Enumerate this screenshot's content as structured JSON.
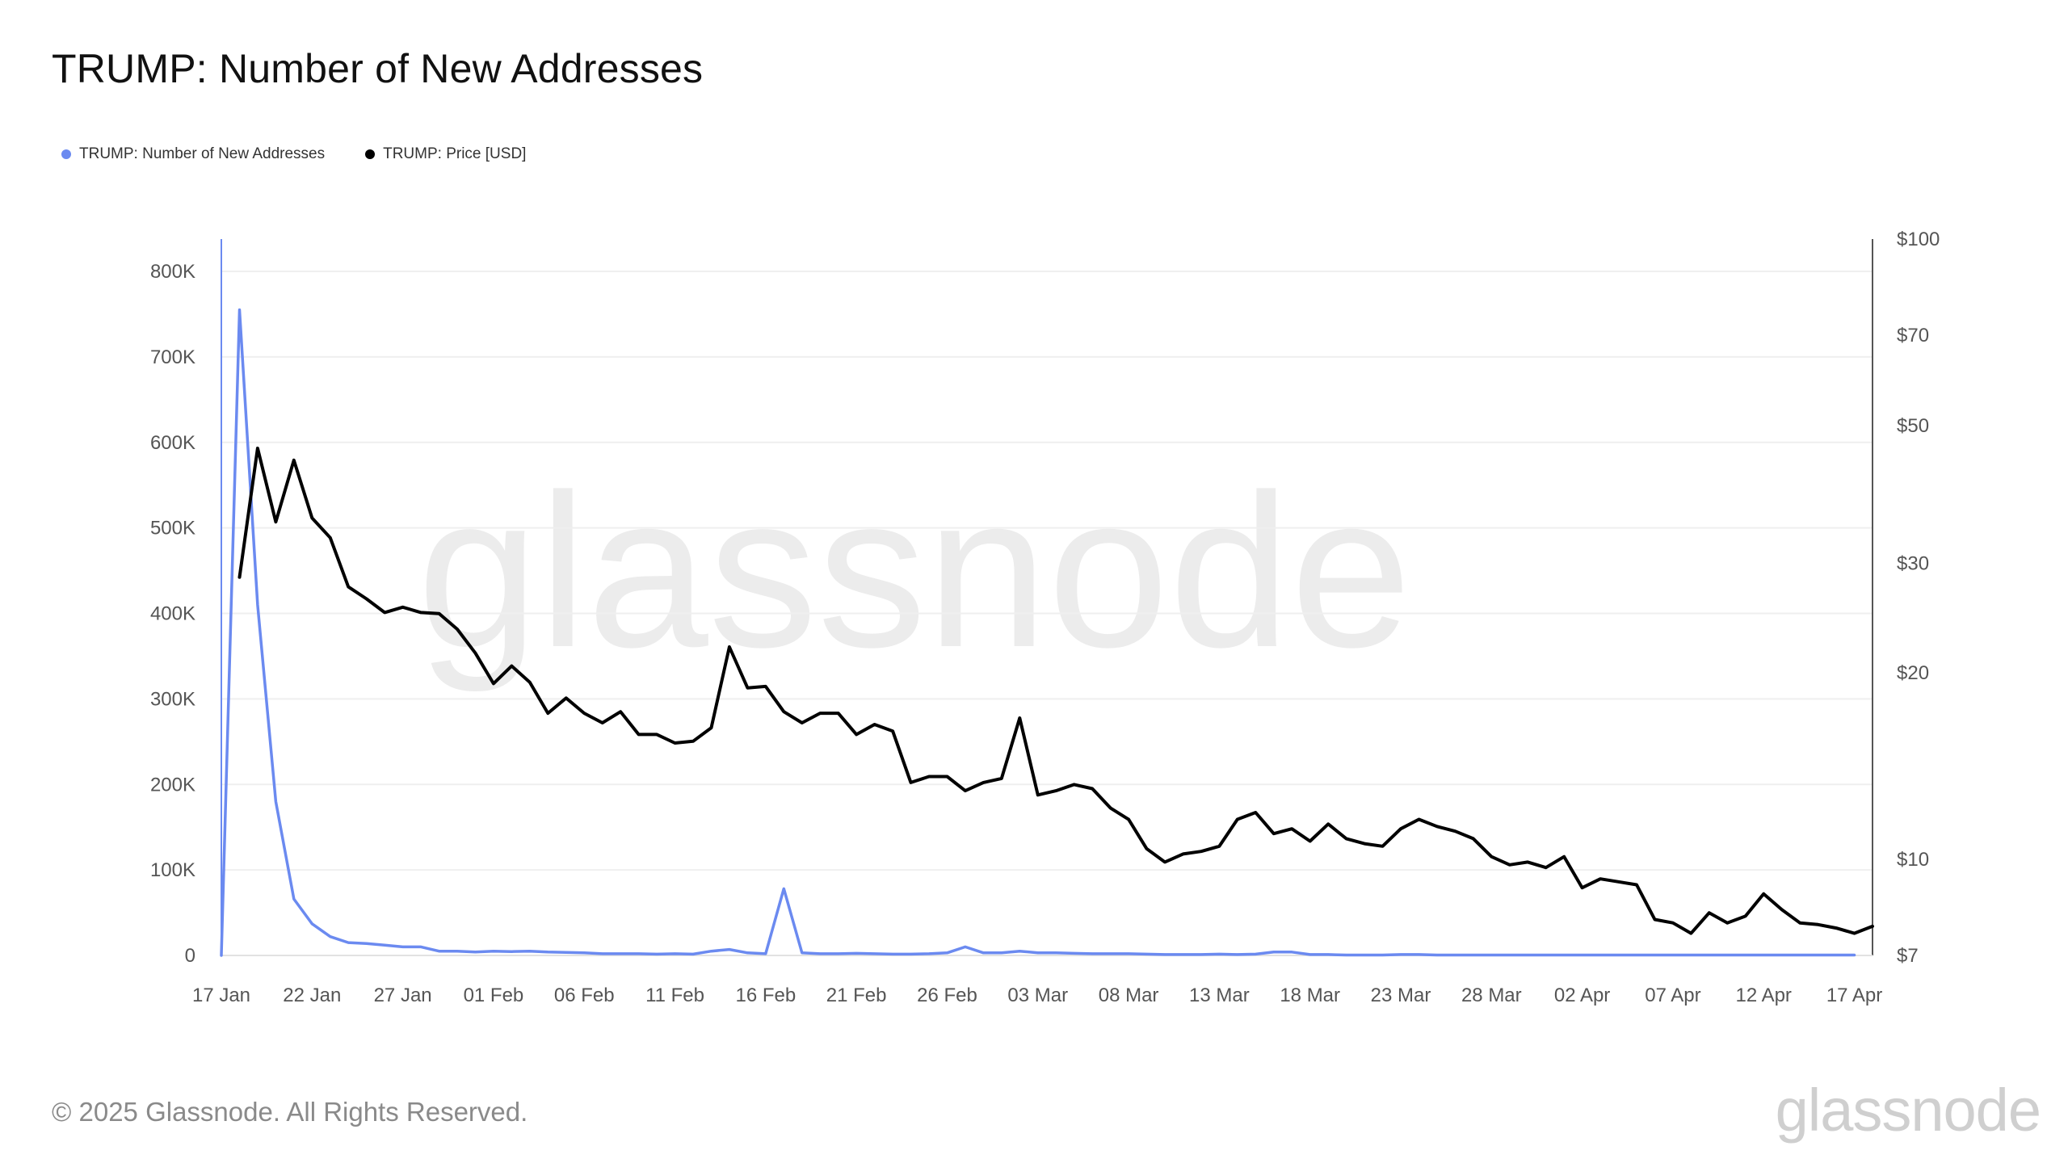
{
  "title": "TRUMP: Number of New Addresses",
  "legend": [
    {
      "label": "TRUMP: Number of New Addresses",
      "color": "#6b8af0"
    },
    {
      "label": "TRUMP: Price [USD]",
      "color": "#000000"
    }
  ],
  "footer": "© 2025 Glassnode. All Rights Reserved.",
  "brand": "glassnode",
  "watermark": "glassnode",
  "chart_data": {
    "type": "line",
    "title": "TRUMP: Number of New Addresses",
    "x_start": "2025-01-17",
    "x_end": "2025-04-18",
    "x_ticks": [
      "17 Jan",
      "22 Jan",
      "27 Jan",
      "01 Feb",
      "06 Feb",
      "11 Feb",
      "16 Feb",
      "21 Feb",
      "26 Feb",
      "03 Mar",
      "08 Mar",
      "13 Mar",
      "18 Mar",
      "23 Mar",
      "28 Mar",
      "02 Apr",
      "07 Apr",
      "12 Apr",
      "17 Apr"
    ],
    "y_left": {
      "label": "",
      "ticks": [
        "0",
        "100K",
        "200K",
        "300K",
        "400K",
        "500K",
        "600K",
        "700K",
        "800K"
      ],
      "range": [
        0,
        800000
      ]
    },
    "y_right": {
      "label": "",
      "scale": "log",
      "ticks": [
        "$7",
        "$10",
        "$20",
        "$30",
        "$50",
        "$70",
        "$100"
      ],
      "range": [
        7,
        100
      ]
    },
    "grid": true,
    "legend_position": "top-left",
    "series": [
      {
        "name": "TRUMP: Number of New Addresses",
        "axis": "left",
        "color": "#6b8af0",
        "start": "2025-01-17",
        "values": [
          0,
          755000,
          410000,
          180000,
          66000,
          37000,
          22000,
          15000,
          14000,
          12000,
          10000,
          10000,
          5000,
          5000,
          4000,
          5000,
          4500,
          5000,
          4000,
          3500,
          3000,
          2000,
          2000,
          2000,
          1500,
          2000,
          1500,
          5000,
          7000,
          3000,
          2000,
          78000,
          3000,
          2000,
          2000,
          2500,
          2000,
          1500,
          1500,
          2000,
          3000,
          10000,
          3000,
          3000,
          5000,
          3000,
          3000,
          2500,
          2000,
          2000,
          2000,
          1500,
          1000,
          1000,
          1000,
          1500,
          1000,
          1500,
          4000,
          4000,
          1000,
          1000,
          500,
          500,
          500,
          1000,
          1000,
          500,
          500,
          500,
          500,
          500,
          500,
          500,
          500,
          500,
          500,
          500,
          500,
          500,
          500,
          500,
          500,
          500,
          500,
          500,
          500,
          500,
          500,
          500,
          500
        ]
      },
      {
        "name": "TRUMP: Price [USD]",
        "axis": "right",
        "color": "#000000",
        "start": "2025-01-18",
        "values": [
          28.5,
          46,
          35,
          44,
          35.5,
          33,
          27.5,
          26.3,
          25,
          25.5,
          25,
          24.9,
          23.5,
          21.5,
          19.2,
          20.5,
          19.3,
          17.2,
          18.2,
          17.2,
          16.6,
          17.3,
          15.9,
          15.9,
          15.4,
          15.5,
          16.3,
          22,
          18.9,
          19,
          17.3,
          16.6,
          17.2,
          17.2,
          15.9,
          16.5,
          16.1,
          13.3,
          13.6,
          13.6,
          12.9,
          13.3,
          13.5,
          16.9,
          12.7,
          12.9,
          13.2,
          13,
          12.1,
          11.6,
          10.4,
          9.9,
          10.2,
          10.3,
          10.5,
          11.6,
          11.9,
          11,
          11.2,
          10.7,
          11.4,
          10.8,
          10.6,
          10.5,
          11.2,
          11.6,
          11.3,
          11.1,
          10.8,
          10.1,
          9.8,
          9.9,
          9.7,
          10.1,
          9.0,
          9.3,
          9.2,
          9.1,
          8.0,
          7.9,
          7.6,
          8.2,
          7.9,
          8.1,
          8.8,
          8.3,
          7.9,
          7.85,
          7.75,
          7.6,
          7.8
        ]
      }
    ]
  }
}
